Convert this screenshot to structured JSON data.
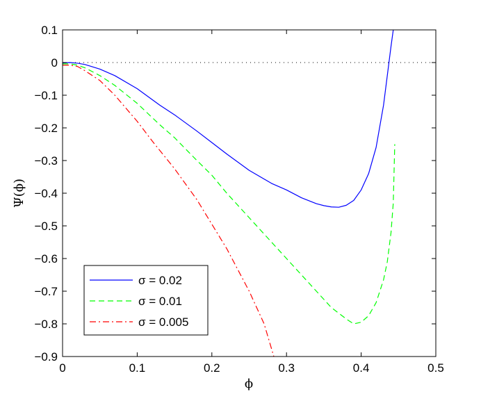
{
  "chart_data": {
    "type": "line",
    "title": "",
    "xlabel": "ϕ",
    "ylabel": "Ψ(ϕ)",
    "xlim": [
      0,
      0.5
    ],
    "ylim": [
      -0.9,
      0.1
    ],
    "x_ticks": [
      0,
      0.1,
      0.2,
      0.3,
      0.4,
      0.5
    ],
    "x_tick_labels": [
      "0",
      "0.1",
      "0.2",
      "0.3",
      "0.4",
      "0.5"
    ],
    "y_ticks": [
      0.1,
      0,
      -0.1,
      -0.2,
      -0.3,
      -0.4,
      -0.5,
      -0.6,
      -0.7,
      -0.8,
      -0.9
    ],
    "y_tick_labels": [
      "0.1",
      "0",
      "−0.1",
      "−0.2",
      "−0.3",
      "−0.4",
      "−0.5",
      "−0.6",
      "−0.7",
      "−0.8",
      "−0.9"
    ],
    "grid": false,
    "legend_position": "bottom-left",
    "reference_line": {
      "y": 0,
      "style": "dotted",
      "color": "#000000"
    },
    "series": [
      {
        "name": "σ = 0.02",
        "color": "#0000ff",
        "dash": "solid",
        "x": [
          0,
          0.01,
          0.02,
          0.03,
          0.05,
          0.07,
          0.1,
          0.13,
          0.15,
          0.18,
          0.2,
          0.22,
          0.25,
          0.28,
          0.3,
          0.32,
          0.34,
          0.35,
          0.36,
          0.37,
          0.38,
          0.39,
          0.4,
          0.41,
          0.42,
          0.43,
          0.435,
          0.44,
          0.443
        ],
        "y": [
          -0.001,
          0.0,
          -0.002,
          -0.006,
          -0.02,
          -0.04,
          -0.08,
          -0.13,
          -0.16,
          -0.21,
          -0.245,
          -0.28,
          -0.33,
          -0.37,
          -0.39,
          -0.414,
          -0.432,
          -0.438,
          -0.442,
          -0.443,
          -0.437,
          -0.422,
          -0.39,
          -0.34,
          -0.26,
          -0.13,
          -0.04,
          0.05,
          0.1
        ]
      },
      {
        "name": "σ = 0.01",
        "color": "#00ff00",
        "dash": "dashed",
        "x": [
          0,
          0.01,
          0.02,
          0.03,
          0.05,
          0.07,
          0.1,
          0.13,
          0.15,
          0.18,
          0.2,
          0.22,
          0.25,
          0.28,
          0.3,
          0.32,
          0.34,
          0.36,
          0.38,
          0.39,
          0.4,
          0.41,
          0.42,
          0.43,
          0.435,
          0.44,
          0.443,
          0.445
        ],
        "y": [
          -0.004,
          -0.004,
          -0.008,
          -0.016,
          -0.04,
          -0.07,
          -0.125,
          -0.19,
          -0.23,
          -0.3,
          -0.345,
          -0.4,
          -0.475,
          -0.55,
          -0.6,
          -0.65,
          -0.7,
          -0.75,
          -0.785,
          -0.8,
          -0.795,
          -0.775,
          -0.735,
          -0.665,
          -0.61,
          -0.52,
          -0.43,
          -0.25
        ]
      },
      {
        "name": "σ = 0.005",
        "color": "#ff0000",
        "dash": "dashdot",
        "x": [
          0,
          0.01,
          0.02,
          0.03,
          0.05,
          0.07,
          0.1,
          0.12,
          0.15,
          0.18,
          0.2,
          0.22,
          0.25,
          0.27,
          0.283
        ],
        "y": [
          -0.008,
          -0.008,
          -0.012,
          -0.025,
          -0.055,
          -0.1,
          -0.18,
          -0.24,
          -0.325,
          -0.42,
          -0.495,
          -0.57,
          -0.7,
          -0.8,
          -0.9
        ]
      }
    ]
  }
}
